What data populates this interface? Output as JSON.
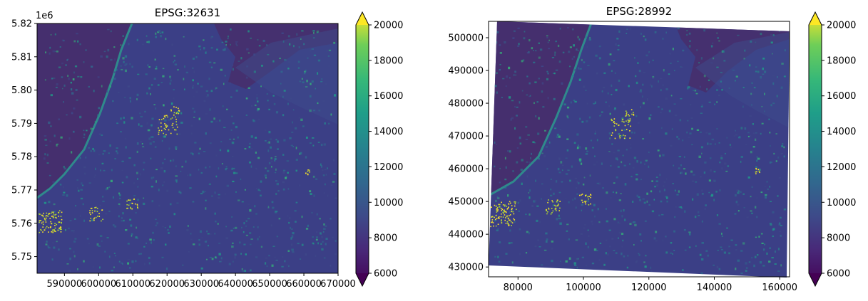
{
  "chart_data": [
    {
      "type": "heatmap",
      "title": "EPSG:32631",
      "xlim": [
        582000,
        670000
      ],
      "ylim": [
        5745000,
        5820000
      ],
      "x_ticks": [
        590000,
        600000,
        610000,
        620000,
        630000,
        640000,
        650000,
        660000,
        670000
      ],
      "x_tick_labels": [
        "590000",
        "600000",
        "610000",
        "620000",
        "630000",
        "640000",
        "650000",
        "660000",
        "670000"
      ],
      "y_ticks": [
        5750000,
        5760000,
        5770000,
        5780000,
        5790000,
        5800000,
        5810000,
        5820000
      ],
      "y_tick_labels": [
        "5.75",
        "5.76",
        "5.77",
        "5.78",
        "5.79",
        "5.80",
        "5.81",
        "5.82"
      ],
      "y_offset_label": "1e6",
      "colormap": "viridis",
      "colorbar": {
        "range": [
          6000,
          20000
        ],
        "extend": "both",
        "ticks": [
          6000,
          8000,
          10000,
          12000,
          14000,
          16000,
          18000,
          20000
        ],
        "tick_labels": [
          "6000",
          "8000",
          "10000",
          "12000",
          "14000",
          "16000",
          "18000",
          "20000"
        ]
      }
    },
    {
      "type": "heatmap",
      "title": "EPSG:28992",
      "xlim": [
        71000,
        163000
      ],
      "ylim": [
        427000,
        505000
      ],
      "x_ticks": [
        80000,
        100000,
        120000,
        140000,
        160000
      ],
      "x_tick_labels": [
        "80000",
        "100000",
        "120000",
        "140000",
        "160000"
      ],
      "y_ticks": [
        430000,
        440000,
        450000,
        460000,
        470000,
        480000,
        490000,
        500000
      ],
      "y_tick_labels": [
        "430000",
        "440000",
        "450000",
        "460000",
        "470000",
        "480000",
        "490000",
        "500000"
      ],
      "colormap": "viridis",
      "colorbar": {
        "range": [
          6000,
          20000
        ],
        "extend": "both",
        "ticks": [
          6000,
          8000,
          10000,
          12000,
          14000,
          16000,
          18000,
          20000
        ],
        "tick_labels": [
          "6000",
          "8000",
          "10000",
          "12000",
          "14000",
          "16000",
          "18000",
          "20000"
        ]
      }
    }
  ]
}
